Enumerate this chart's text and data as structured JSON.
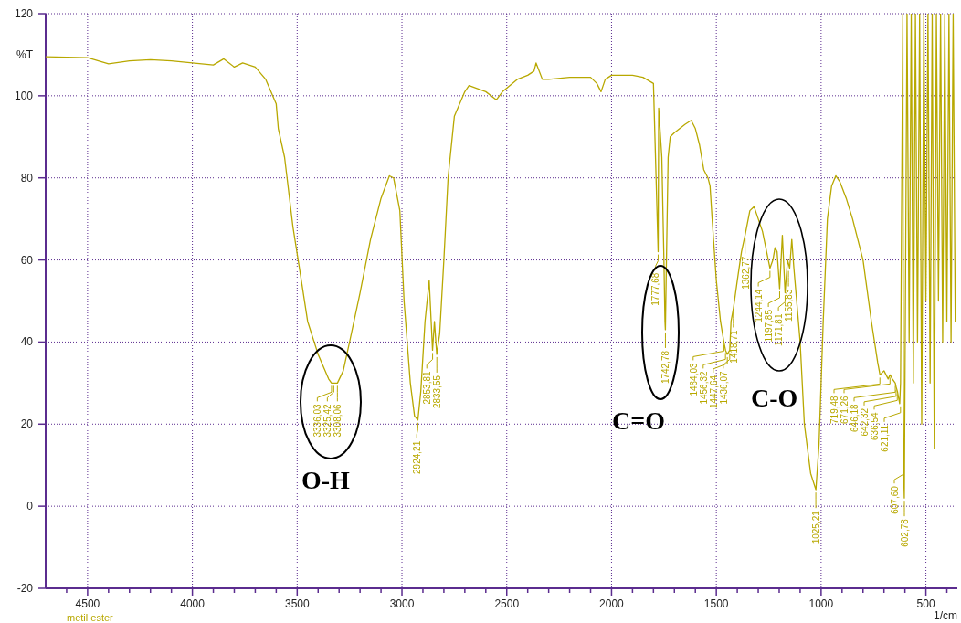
{
  "chart_data": {
    "type": "line",
    "ylabel": "%T",
    "xlabel": "1/cm",
    "xlim": [
      4700,
      350
    ],
    "ylim": [
      -20,
      120
    ],
    "xticks": [
      {
        "value": 4600,
        "label": null
      },
      4500,
      {
        "value": 4400,
        "label": null
      },
      {
        "value": 4300,
        "label": null
      },
      {
        "value": 4200,
        "label": null
      },
      {
        "value": 4100,
        "label": null
      },
      4000,
      {
        "value": 3900,
        "label": null
      },
      {
        "value": 3800,
        "label": null
      },
      {
        "value": 3700,
        "label": null
      },
      {
        "value": 3600,
        "label": null
      },
      3500,
      {
        "value": 3400,
        "label": null
      },
      {
        "value": 3300,
        "label": null
      },
      {
        "value": 3200,
        "label": null
      },
      {
        "value": 3100,
        "label": null
      },
      3000,
      {
        "value": 2900,
        "label": null
      },
      {
        "value": 2800,
        "label": null
      },
      {
        "value": 2700,
        "label": null
      },
      {
        "value": 2600,
        "label": null
      },
      2500,
      {
        "value": 2400,
        "label": null
      },
      {
        "value": 2300,
        "label": null
      },
      {
        "value": 2200,
        "label": null
      },
      {
        "value": 2100,
        "label": null
      },
      2000,
      {
        "value": 1900,
        "label": null
      },
      {
        "value": 1800,
        "label": null
      },
      {
        "value": 1700,
        "label": null
      },
      {
        "value": 1600,
        "label": null
      },
      1500,
      {
        "value": 1400,
        "label": null
      },
      {
        "value": 1300,
        "label": null
      },
      {
        "value": 1200,
        "label": null
      },
      {
        "value": 1100,
        "label": null
      },
      1000,
      {
        "value": 900,
        "label": null
      },
      {
        "value": 800,
        "label": null
      },
      {
        "value": 700,
        "label": null
      },
      {
        "value": 600,
        "label": null
      },
      500,
      {
        "value": 400,
        "label": null
      }
    ],
    "yticks": [
      -20,
      0,
      20,
      40,
      60,
      80,
      100,
      120
    ],
    "grid": true,
    "legend": "bottom left",
    "series": [
      {
        "name": "metil ester",
        "color": "#b8a800",
        "x": [
          4700,
          4500,
          4400,
          4300,
          4200,
          4100,
          4000,
          3900,
          3850,
          3800,
          3760,
          3700,
          3650,
          3600,
          3590,
          3560,
          3520,
          3480,
          3450,
          3400,
          3350,
          3336,
          3325,
          3308,
          3280,
          3250,
          3200,
          3150,
          3100,
          3060,
          3040,
          3010,
          2990,
          2960,
          2940,
          2924,
          2910,
          2890,
          2870,
          2854,
          2845,
          2834,
          2820,
          2800,
          2780,
          2750,
          2700,
          2680,
          2600,
          2550,
          2520,
          2450,
          2400,
          2370,
          2360,
          2330,
          2300,
          2200,
          2100,
          2070,
          2050,
          2030,
          2000,
          1900,
          1850,
          1800,
          1777.68,
          1775,
          1760,
          1750,
          1745,
          1743,
          1738,
          1730,
          1720,
          1700,
          1650,
          1620,
          1600,
          1580,
          1560,
          1540,
          1530,
          1520,
          1500,
          1480,
          1464,
          1456,
          1448,
          1436,
          1430,
          1419,
          1400,
          1380,
          1363,
          1340,
          1320,
          1300,
          1280,
          1260,
          1244,
          1230,
          1220,
          1210,
          1198,
          1185,
          1172,
          1160,
          1150,
          1140,
          1130,
          1100,
          1080,
          1050,
          1025,
          1010,
          990,
          970,
          950,
          930,
          910,
          880,
          850,
          800,
          760,
          730,
          719,
          700,
          680,
          671,
          660,
          646,
          642,
          636,
          625,
          621,
          610,
          607,
          603,
          590,
          580,
          570,
          560,
          550,
          540,
          530,
          520,
          510,
          500,
          490,
          480,
          470,
          460,
          450,
          440,
          430,
          420,
          410,
          400,
          390,
          380,
          370,
          360
        ],
        "values": [
          109.5,
          109.3,
          107.8,
          108.5,
          108.8,
          108.5,
          108,
          107.5,
          109,
          107,
          108,
          107,
          104,
          98,
          92,
          85,
          68,
          55,
          45,
          37,
          31,
          30,
          30,
          30,
          33,
          40,
          52,
          65,
          75,
          80.5,
          80,
          72,
          50,
          30,
          22,
          21,
          28,
          45,
          55,
          38,
          45,
          37,
          42,
          60,
          80,
          95,
          101,
          102.5,
          101,
          99,
          101,
          104,
          105,
          106,
          108,
          104,
          104,
          104.5,
          104.5,
          103,
          101,
          104,
          105,
          105,
          104.5,
          103,
          62,
          97,
          85,
          60,
          45,
          43,
          60,
          85,
          90,
          91,
          93,
          94,
          92,
          88,
          82,
          80,
          78,
          70,
          55,
          45,
          40,
          38,
          37,
          38,
          45,
          48,
          55,
          62,
          66,
          72,
          73,
          70,
          67,
          62,
          58,
          60,
          63,
          62,
          53,
          66,
          52,
          60,
          58,
          65,
          58,
          40,
          20,
          8,
          4,
          15,
          45,
          70,
          78,
          80.5,
          79,
          75,
          70,
          60,
          45,
          35,
          32,
          33,
          31,
          32,
          31,
          30,
          29,
          28,
          25,
          30,
          120,
          10,
          2,
          120,
          40,
          120,
          30,
          120,
          40,
          120,
          20,
          120,
          50,
          120,
          30,
          120,
          14,
          120,
          50,
          120,
          40,
          120,
          45,
          120,
          40,
          120,
          45
        ]
      }
    ],
    "annotations": [
      {
        "text": "3336,03",
        "x": 3336.03,
        "y": 30
      },
      {
        "text": "3325,42",
        "x": 3325.42,
        "y": 30
      },
      {
        "text": "3308,06",
        "x": 3308.06,
        "y": 30
      },
      {
        "text": "2924,21",
        "x": 2924.21,
        "y": 21
      },
      {
        "text": "2853,81",
        "x": 2853.81,
        "y": 38
      },
      {
        "text": "2833,55",
        "x": 2833.55,
        "y": 37
      },
      {
        "text": "1777,68",
        "x": 1777.68,
        "y": 62
      },
      {
        "text": "1742,78",
        "x": 1742.78,
        "y": 43
      },
      {
        "text": "1464,03",
        "x": 1464.03,
        "y": 40
      },
      {
        "text": "1456,32",
        "x": 1456.32,
        "y": 38
      },
      {
        "text": "1447,64",
        "x": 1447.64,
        "y": 37
      },
      {
        "text": "1436,07",
        "x": 1436.07,
        "y": 38
      },
      {
        "text": "1418,71",
        "x": 1418.71,
        "y": 48
      },
      {
        "text": "1362,77",
        "x": 1362.77,
        "y": 66
      },
      {
        "text": "1244,14",
        "x": 1244.14,
        "y": 58
      },
      {
        "text": "1197,85",
        "x": 1197.85,
        "y": 53
      },
      {
        "text": "1171,81",
        "x": 1171.81,
        "y": 52
      },
      {
        "text": "1155,83",
        "x": 1155.83,
        "y": 58
      },
      {
        "text": "1025,21",
        "x": 1025.21,
        "y": 4
      },
      {
        "text": "719,48",
        "x": 719.48,
        "y": 32
      },
      {
        "text": "671,26",
        "x": 671.26,
        "y": 32
      },
      {
        "text": "646,18",
        "x": 646.18,
        "y": 30
      },
      {
        "text": "642,32",
        "x": 642.32,
        "y": 29
      },
      {
        "text": "636,54",
        "x": 636.54,
        "y": 28
      },
      {
        "text": "621,11",
        "x": 621.11,
        "y": 25
      },
      {
        "text": "607,60",
        "x": 607.6,
        "y": 10
      },
      {
        "text": "602,78",
        "x": 602.78,
        "y": 2
      },
      "O-H",
      "C=O",
      "C-O"
    ]
  }
}
